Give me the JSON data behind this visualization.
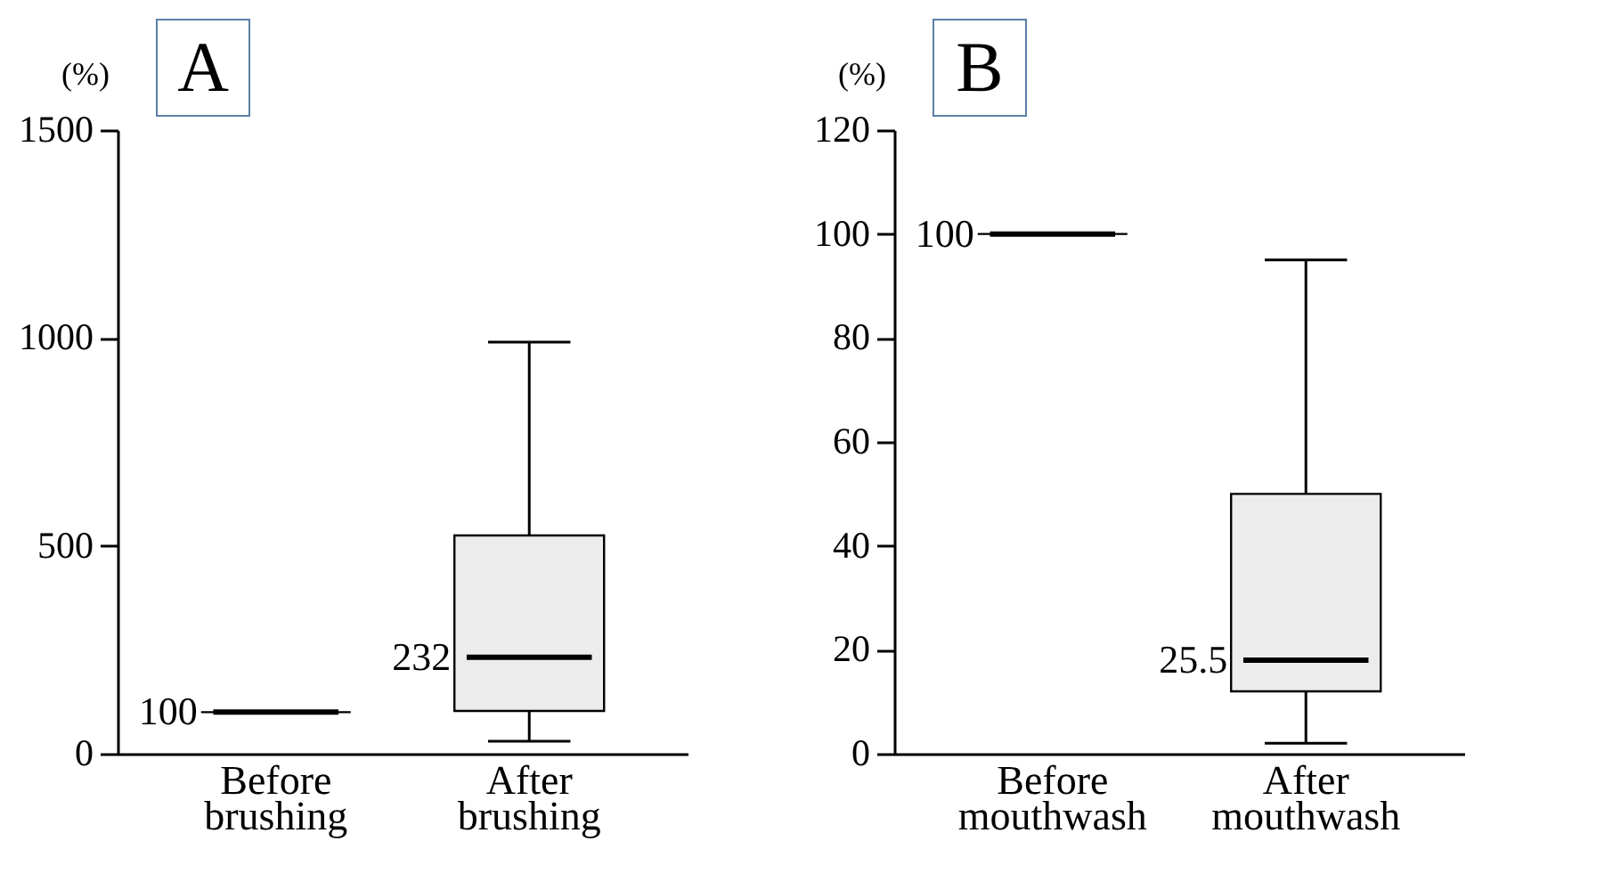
{
  "chart_data": [
    {
      "type": "box",
      "title": "A",
      "ylabel": "(%)",
      "categories": [
        "Before brushing",
        "After brushing"
      ],
      "ylim": [
        0,
        1500
      ],
      "yticks": [
        0,
        500,
        1000,
        1500
      ],
      "series": [
        {
          "colors": [
            "#000000",
            "#ececec"
          ],
          "boxes": [
            {
              "low": 100,
              "q1": 100,
              "median": 100,
              "q3": 100,
              "high": 100
            },
            {
              "low": 30,
              "q1": 103,
              "median": 232,
              "q3": 525,
              "high": 990
            }
          ]
        }
      ],
      "annotations": [
        {
          "text": "100",
          "x": "Before brushing",
          "y": 100
        },
        {
          "text": "232",
          "x": "After brushing",
          "y": 232
        }
      ]
    },
    {
      "type": "box",
      "title": "B",
      "ylabel": "(%)",
      "categories": [
        "Before mouthwash",
        "After mouthwash"
      ],
      "ylim": [
        0,
        120
      ],
      "yticks": [
        0,
        20,
        40,
        60,
        80,
        100,
        120
      ],
      "series": [
        {
          "colors": [
            "#000000",
            "#ececec"
          ],
          "boxes": [
            {
              "low": 100,
              "q1": 100,
              "median": 100,
              "q3": 100,
              "high": 100
            },
            {
              "low": 2,
              "q1": 12,
              "median": 18,
              "q3": 50,
              "high": 95
            }
          ]
        }
      ],
      "annotations": [
        {
          "text": "100",
          "x": "Before mouthwash",
          "y": 100
        },
        {
          "text": "25.5",
          "x": "After mouthwash",
          "y": 18
        }
      ]
    }
  ]
}
